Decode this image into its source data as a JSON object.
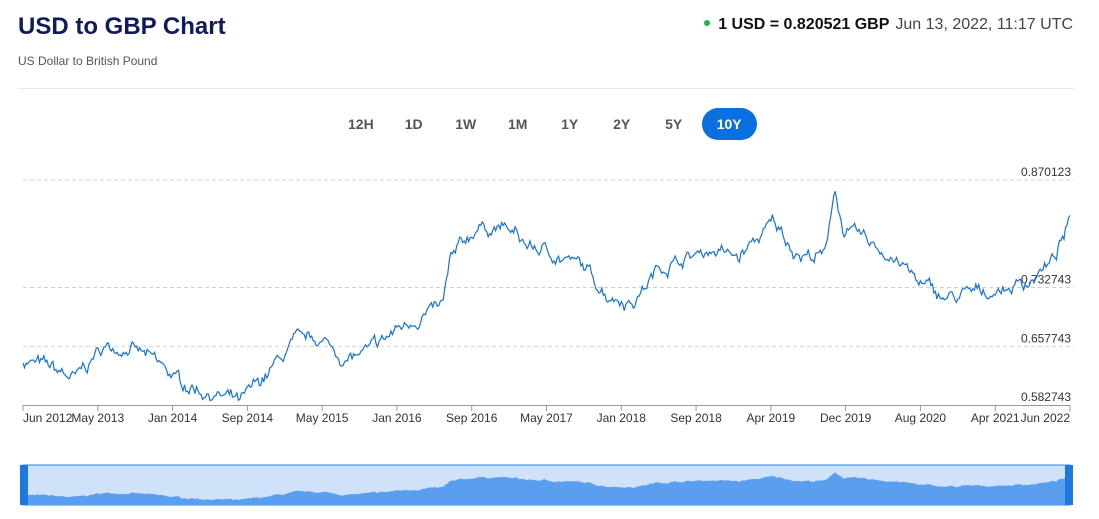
{
  "header": {
    "title": "USD to GBP Chart",
    "subtitle": "US Dollar to British Pound",
    "rate_text": "1 USD = 0.820521 GBP",
    "timestamp": "Jun 13, 2022, 11:17 UTC",
    "live_dot_color": "#21b24a"
  },
  "ranges": {
    "buttons": [
      "12H",
      "1D",
      "1W",
      "1M",
      "1Y",
      "2Y",
      "5Y",
      "10Y"
    ],
    "selected": "10Y",
    "accent": "#0a6fe0"
  },
  "chart_data": {
    "type": "line",
    "title": "",
    "xlabel": "",
    "ylabel": "",
    "line_color": "#1673d6",
    "grid": "dashed horizontal",
    "xlim": [
      "2012-06",
      "2022-06"
    ],
    "ylim": [
      0.582743,
      0.870123
    ],
    "y_ticks": [
      "0.870123",
      "0.732743",
      "0.657743",
      "0.582743"
    ],
    "y_tick_values": [
      0.870123,
      0.732743,
      0.657743,
      0.582743
    ],
    "x_ticks": [
      "Jun 2012",
      "May 2013",
      "Jan 2014",
      "Sep 2014",
      "May 2015",
      "Jan 2016",
      "Sep 2016",
      "May 2017",
      "Jan 2018",
      "Sep 2018",
      "Apr 2019",
      "Dec 2019",
      "Aug 2020",
      "Apr 2021",
      "Jun 2022"
    ],
    "series": [
      {
        "x": [
          "2012-06",
          "2012-09",
          "2012-12",
          "2013-03",
          "2013-06",
          "2013-09",
          "2013-12",
          "2014-03",
          "2014-07",
          "2014-10",
          "2015-01",
          "2015-04",
          "2015-07",
          "2015-10",
          "2016-01",
          "2016-04",
          "2016-06",
          "2016-07",
          "2016-10",
          "2017-01",
          "2017-04",
          "2017-07",
          "2017-10",
          "2018-01",
          "2018-04",
          "2018-07",
          "2018-10",
          "2019-01",
          "2019-04",
          "2019-08",
          "2019-11",
          "2020-02",
          "2020-03",
          "2020-04",
          "2020-07",
          "2020-10",
          "2021-01",
          "2021-04",
          "2021-07",
          "2021-10",
          "2022-01",
          "2022-04",
          "2022-06"
        ],
        "y": [
          0.64,
          0.63,
          0.615,
          0.655,
          0.658,
          0.638,
          0.612,
          0.6,
          0.585,
          0.622,
          0.66,
          0.668,
          0.64,
          0.652,
          0.68,
          0.7,
          0.705,
          0.765,
          0.81,
          0.81,
          0.785,
          0.775,
          0.76,
          0.725,
          0.715,
          0.76,
          0.77,
          0.782,
          0.77,
          0.815,
          0.775,
          0.772,
          0.865,
          0.805,
          0.79,
          0.77,
          0.735,
          0.718,
          0.725,
          0.73,
          0.74,
          0.765,
          0.815
        ]
      }
    ]
  }
}
